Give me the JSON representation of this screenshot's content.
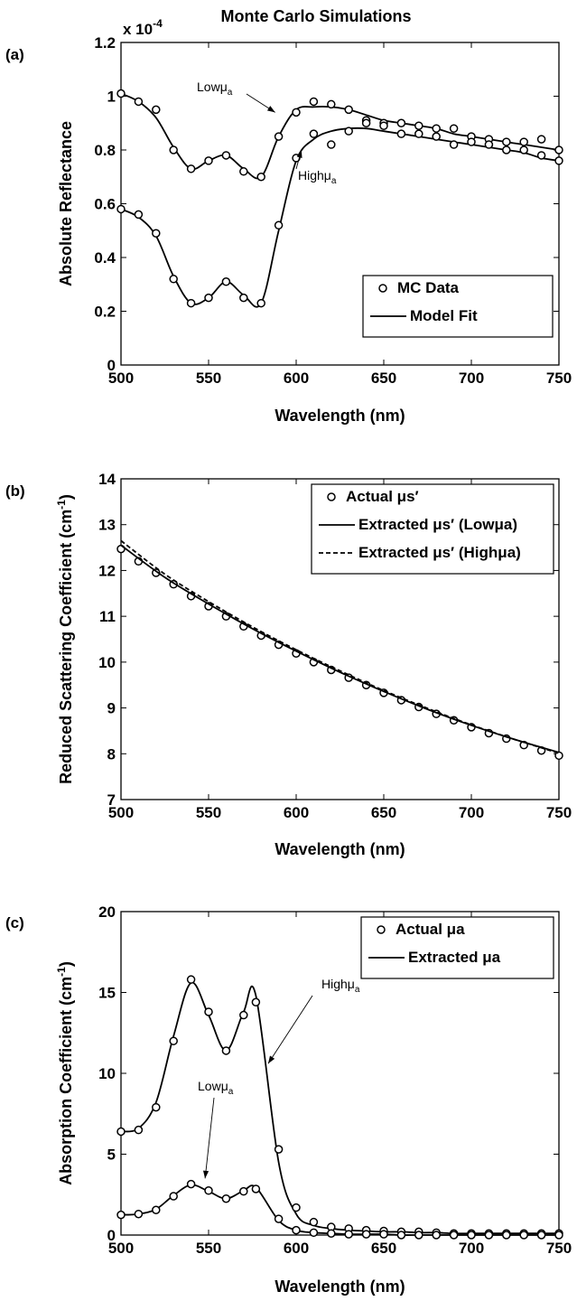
{
  "title": "Monte Carlo Simulations",
  "chart_data": [
    {
      "panel": "(a)",
      "type": "scatter",
      "xlabel": "Wavelength (nm)",
      "ylabel": "Absolute Reflectance",
      "exponent_label": "x 10",
      "exponent_power": "-4",
      "xlim": [
        500,
        750
      ],
      "ylim": [
        0,
        1.2
      ],
      "xticks": [
        "500",
        "550",
        "600",
        "650",
        "700",
        "750"
      ],
      "yticks": [
        "0",
        "0.2",
        "0.4",
        "0.6",
        "0.8",
        "1",
        "1.2"
      ],
      "legend": {
        "position": "lower-right",
        "items": [
          {
            "label": "MC Data",
            "style": "circle"
          },
          {
            "label": "Model Fit",
            "style": "solid"
          }
        ]
      },
      "annotations": [
        {
          "base": "Low",
          "sub": "a",
          "target": [
            588,
            0.94
          ]
        },
        {
          "base": "High",
          "sub": "a",
          "target": [
            603,
            0.8
          ]
        }
      ],
      "series": [
        {
          "name": "Low μa",
          "x": [
            500,
            510,
            520,
            530,
            540,
            550,
            560,
            570,
            580,
            590,
            600,
            610,
            620,
            630,
            640,
            650,
            660,
            670,
            680,
            690,
            700,
            710,
            720,
            730,
            740,
            750
          ],
          "points": [
            1.01,
            0.98,
            0.95,
            0.8,
            0.73,
            0.76,
            0.78,
            0.72,
            0.7,
            0.85,
            0.94,
            0.98,
            0.97,
            0.95,
            0.91,
            0.9,
            0.9,
            0.89,
            0.88,
            0.88,
            0.85,
            0.84,
            0.83,
            0.83,
            0.84,
            0.8
          ],
          "fit": [
            1.01,
            0.98,
            0.92,
            0.81,
            0.73,
            0.76,
            0.78,
            0.73,
            0.7,
            0.85,
            0.95,
            0.96,
            0.96,
            0.95,
            0.93,
            0.91,
            0.9,
            0.89,
            0.88,
            0.86,
            0.85,
            0.84,
            0.83,
            0.82,
            0.81,
            0.8
          ]
        },
        {
          "name": "High μa",
          "x": [
            500,
            510,
            520,
            530,
            540,
            550,
            560,
            570,
            580,
            590,
            600,
            610,
            620,
            630,
            640,
            650,
            660,
            670,
            680,
            690,
            700,
            710,
            720,
            730,
            740,
            750
          ],
          "points": [
            0.58,
            0.56,
            0.49,
            0.32,
            0.23,
            0.25,
            0.31,
            0.25,
            0.23,
            0.52,
            0.77,
            0.86,
            0.82,
            0.87,
            0.9,
            0.89,
            0.86,
            0.86,
            0.85,
            0.82,
            0.83,
            0.82,
            0.8,
            0.8,
            0.78,
            0.76
          ],
          "fit": [
            0.58,
            0.55,
            0.48,
            0.33,
            0.23,
            0.25,
            0.31,
            0.26,
            0.23,
            0.5,
            0.76,
            0.84,
            0.87,
            0.88,
            0.88,
            0.87,
            0.86,
            0.85,
            0.84,
            0.83,
            0.82,
            0.81,
            0.8,
            0.79,
            0.77,
            0.76
          ]
        }
      ]
    },
    {
      "panel": "(b)",
      "type": "scatter",
      "xlabel": "Wavelength (nm)",
      "ylabel": "Reduced Scattering Coefficient (cm",
      "ylabel_sup": "-1",
      "ylabel_end": ")",
      "xlim": [
        500,
        750
      ],
      "ylim": [
        7,
        14
      ],
      "xticks": [
        "500",
        "550",
        "600",
        "650",
        "700",
        "750"
      ],
      "yticks": [
        "7",
        "8",
        "9",
        "10",
        "11",
        "12",
        "13",
        "14"
      ],
      "legend": {
        "position": "top-right",
        "items": [
          {
            "label": "Actual μs′",
            "style": "circle"
          },
          {
            "label": "Extracted μs′ (Lowμa)",
            "style": "solid"
          },
          {
            "label": "Extracted μs′ (Highμa)",
            "style": "dashed"
          }
        ]
      },
      "series": [
        {
          "name": "Actual μs′",
          "x": [
            500,
            510,
            520,
            530,
            540,
            550,
            560,
            570,
            580,
            590,
            600,
            610,
            620,
            630,
            640,
            650,
            660,
            670,
            680,
            690,
            700,
            710,
            720,
            730,
            740,
            750
          ],
          "values": [
            12.47,
            12.2,
            11.95,
            11.7,
            11.44,
            11.22,
            11.0,
            10.78,
            10.58,
            10.38,
            10.19,
            10.0,
            9.83,
            9.66,
            9.5,
            9.33,
            9.17,
            9.02,
            8.87,
            8.73,
            8.58,
            8.45,
            8.33,
            8.19,
            8.07,
            7.96
          ]
        },
        {
          "name": "Extracted μs′ (Lowμa)",
          "x": [
            500,
            525,
            550,
            575,
            600,
            625,
            650,
            675,
            700,
            725,
            750
          ],
          "values": [
            12.55,
            11.85,
            11.27,
            10.73,
            10.24,
            9.78,
            9.36,
            8.97,
            8.62,
            8.31,
            8.03
          ]
        },
        {
          "name": "Extracted μs′ (Highμa)",
          "x": [
            500,
            525,
            550,
            575,
            600,
            625,
            650,
            675,
            700,
            725,
            750
          ],
          "values": [
            12.65,
            11.92,
            11.32,
            10.77,
            10.27,
            9.81,
            9.38,
            8.99,
            8.63,
            8.31,
            8.01
          ]
        }
      ]
    },
    {
      "panel": "(c)",
      "type": "scatter",
      "xlabel": "Wavelength (nm)",
      "ylabel": "Absorption Coefficient (cm",
      "ylabel_sup": "-1",
      "ylabel_end": ")",
      "xlim": [
        500,
        750
      ],
      "ylim": [
        0,
        20
      ],
      "xticks": [
        "500",
        "550",
        "600",
        "650",
        "700",
        "750"
      ],
      "yticks": [
        "0",
        "5",
        "10",
        "15",
        "20"
      ],
      "legend": {
        "position": "top-right",
        "items": [
          {
            "label": "Actual μa",
            "style": "circle"
          },
          {
            "label": "Extracted μa",
            "style": "solid"
          }
        ]
      },
      "annotations": [
        {
          "base": "High",
          "sub": "a",
          "target": [
            584,
            10.6
          ]
        },
        {
          "base": "Low",
          "sub": "a",
          "target": [
            548,
            3.5
          ]
        }
      ],
      "series": [
        {
          "name": "High μa",
          "x": [
            500,
            510,
            520,
            530,
            540,
            550,
            560,
            570,
            577,
            590,
            600,
            610,
            620,
            630,
            640,
            650,
            660,
            670,
            680,
            690,
            700,
            710,
            720,
            730,
            740,
            750
          ],
          "points": [
            6.4,
            6.5,
            7.9,
            12.0,
            15.8,
            13.8,
            11.4,
            13.6,
            14.4,
            5.3,
            1.7,
            0.8,
            0.5,
            0.4,
            0.3,
            0.25,
            0.2,
            0.2,
            0.15,
            0.1,
            0.1,
            0.1,
            0.1,
            0.1,
            0.1,
            0.1
          ],
          "fit": [
            6.4,
            6.6,
            8.2,
            12.3,
            15.6,
            13.6,
            11.4,
            13.8,
            14.8,
            4.5,
            1.3,
            0.6,
            0.4,
            0.3,
            0.25,
            0.2,
            0.2,
            0.15,
            0.15,
            0.1,
            0.1,
            0.1,
            0.1,
            0.1,
            0.1,
            0.1
          ]
        },
        {
          "name": "Low μa",
          "x": [
            500,
            510,
            520,
            530,
            540,
            550,
            560,
            570,
            577,
            590,
            600,
            610,
            620,
            630,
            640,
            650,
            660,
            670,
            680,
            690,
            700,
            710,
            720,
            730,
            740,
            750
          ],
          "points": [
            1.25,
            1.3,
            1.55,
            2.4,
            3.15,
            2.75,
            2.25,
            2.7,
            2.85,
            1.0,
            0.3,
            0.15,
            0.1,
            0.05,
            0.05,
            0.05,
            0.0,
            0.0,
            0.0,
            0.0,
            0.0,
            0.0,
            0.0,
            0.0,
            0.0,
            0.0
          ],
          "fit": [
            1.25,
            1.3,
            1.6,
            2.45,
            3.1,
            2.7,
            2.25,
            2.75,
            2.95,
            0.9,
            0.3,
            0.15,
            0.1,
            0.05,
            0.05,
            0.05,
            0.0,
            0.0,
            0.0,
            0.0,
            0.0,
            0.0,
            0.0,
            0.0,
            0.0,
            0.0
          ]
        }
      ]
    }
  ]
}
